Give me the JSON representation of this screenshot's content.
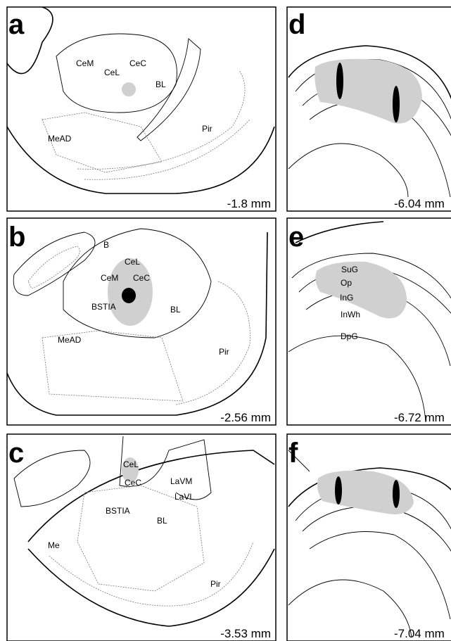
{
  "panels": [
    {
      "letter": "a",
      "labels": [
        "CeM",
        "CeL",
        "CeC",
        "BL",
        "MeAD",
        "Pir"
      ],
      "coordinate": "-1.8 mm"
    },
    {
      "letter": "b",
      "labels": [
        "B",
        "CeL",
        "CeM",
        "CeC",
        "BSTIA",
        "BL",
        "MeAD",
        "Pir"
      ],
      "coordinate": "-2.56 mm"
    },
    {
      "letter": "c",
      "labels": [
        "CeL",
        "CeC",
        "LaVM",
        "LaVL",
        "BSTIA",
        "BL",
        "Me",
        "Pir"
      ],
      "coordinate": "-3.53 mm"
    },
    {
      "letter": "d",
      "labels": [],
      "coordinate": "-6.04 mm"
    },
    {
      "letter": "e",
      "labels": [
        "SuG",
        "Op",
        "InG",
        "InWh",
        "DpG"
      ],
      "coordinate": "-6.72 mm"
    },
    {
      "letter": "f",
      "labels": [],
      "coordinate": "-7.04 mm"
    }
  ]
}
